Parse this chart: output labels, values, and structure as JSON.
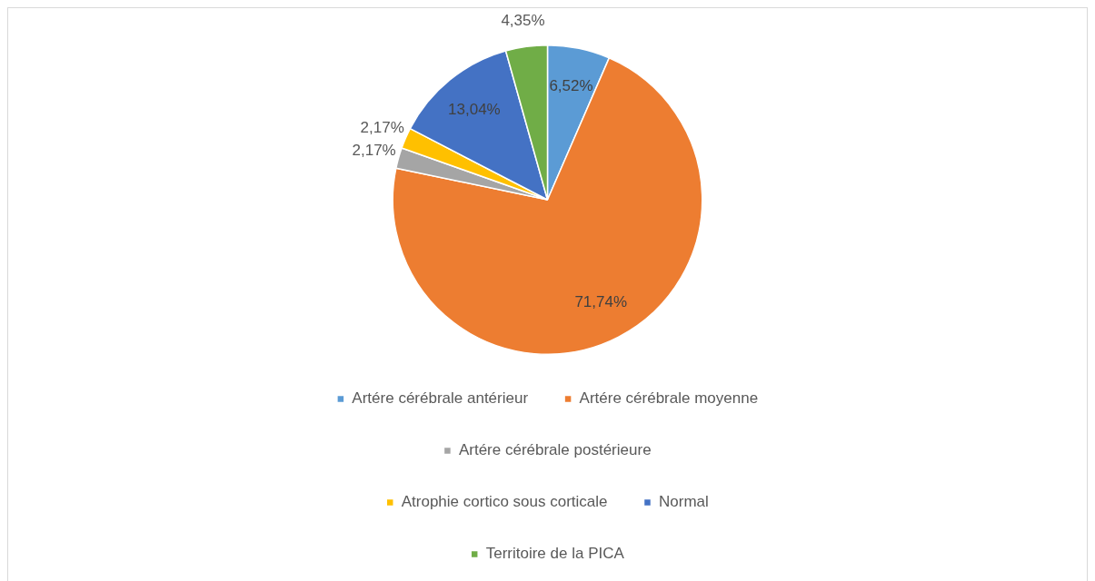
{
  "chart_data": {
    "type": "pie",
    "categories": [
      "Artére cérébrale antérieur",
      "Artére cérébrale moyenne",
      "Artére cérébrale postérieure",
      "Atrophie cortico sous corticale",
      "Normal",
      "Territoire de la PICA"
    ],
    "values": [
      6.52,
      71.74,
      2.17,
      2.17,
      13.04,
      4.35
    ],
    "value_labels": [
      "6,52%",
      "71,74%",
      "2,17%",
      "2,17%",
      "13,04%",
      "4,35%"
    ],
    "colors": [
      "#5b9bd5",
      "#ed7d31",
      "#a5a5a5",
      "#ffc000",
      "#4472c4",
      "#70ad47"
    ],
    "legend": "bottom"
  }
}
